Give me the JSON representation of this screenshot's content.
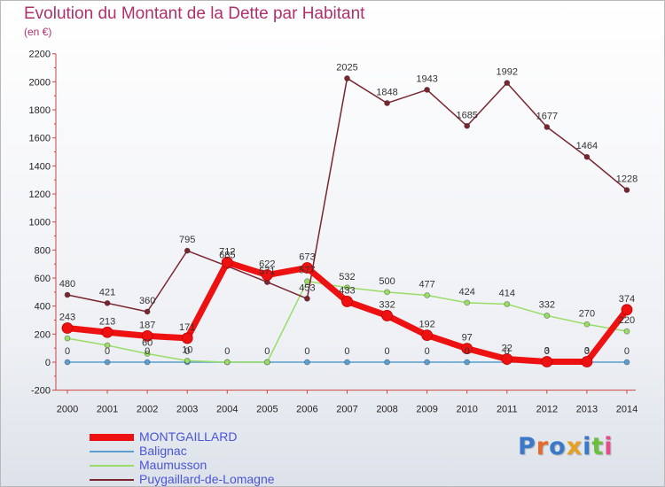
{
  "header": {
    "title": "Evolution du Montant de la Dette par Habitant",
    "unit": "(en €)"
  },
  "brand": {
    "text": "Proxiti",
    "colors": [
      "#3a78c8",
      "#e86a2a",
      "#3a78c8",
      "#e8a020",
      "#3a78c8",
      "#6cbf3c",
      "#e84a8a"
    ]
  },
  "chart_data": {
    "type": "line",
    "title": "Evolution du Montant de la Dette par Habitant",
    "subtitle": "(en €)",
    "xlabel": "",
    "ylabel": "",
    "x": [
      2000,
      2001,
      2002,
      2003,
      2004,
      2005,
      2006,
      2007,
      2008,
      2009,
      2010,
      2011,
      2012,
      2013,
      2014
    ],
    "ylim": [
      -200,
      2200
    ],
    "yticks": [
      -200,
      0,
      200,
      400,
      600,
      800,
      1000,
      1200,
      1400,
      1600,
      1800,
      2000,
      2200
    ],
    "grid": false,
    "legend_position": "bottom-left",
    "series": [
      {
        "name": "MONTGAILLARD",
        "color": "#ee1111",
        "values": [
          243,
          213,
          187,
          171,
          712,
          622,
          673,
          433,
          332,
          192,
          97,
          22,
          3,
          3,
          374
        ],
        "labels": [
          "243",
          "213",
          "187",
          "171",
          "712",
          "622",
          "673",
          "",
          "332",
          "192",
          "97",
          "22",
          "3",
          "3",
          "374"
        ]
      },
      {
        "name": "Balignac",
        "color": "#5a9fd0",
        "values": [
          0,
          0,
          0,
          0,
          0,
          0,
          0,
          0,
          0,
          0,
          0,
          0,
          0,
          0,
          0
        ],
        "labels": [
          "0",
          "0",
          "0",
          "0",
          "0",
          "0",
          "0",
          "0",
          "0",
          "0",
          "0",
          "0",
          "0",
          "0",
          "0"
        ]
      },
      {
        "name": "Maumusson",
        "color": "#99dd66",
        "values": [
          170,
          120,
          60,
          10,
          0,
          0,
          577,
          532,
          500,
          477,
          424,
          414,
          332,
          270,
          220
        ],
        "labels": [
          "",
          "",
          "60",
          "10",
          "",
          "",
          "577",
          "532",
          "500",
          "477",
          "424",
          "414",
          "332",
          "270",
          "220"
        ]
      },
      {
        "name": "Puygaillard-de-Lomagne",
        "color": "#7a2630",
        "values": [
          480,
          421,
          360,
          795,
          685,
          571,
          453,
          2025,
          1848,
          1943,
          1685,
          1992,
          1677,
          1464,
          1228
        ],
        "labels": [
          "480",
          "421",
          "360",
          "795",
          "685",
          "571",
          "453",
          "2025",
          "1848",
          "1943",
          "1685",
          "1992",
          "1677",
          "1464",
          "1228"
        ]
      }
    ],
    "extra_labels": [
      {
        "x": 2007,
        "series": 0,
        "text": "433"
      }
    ]
  }
}
